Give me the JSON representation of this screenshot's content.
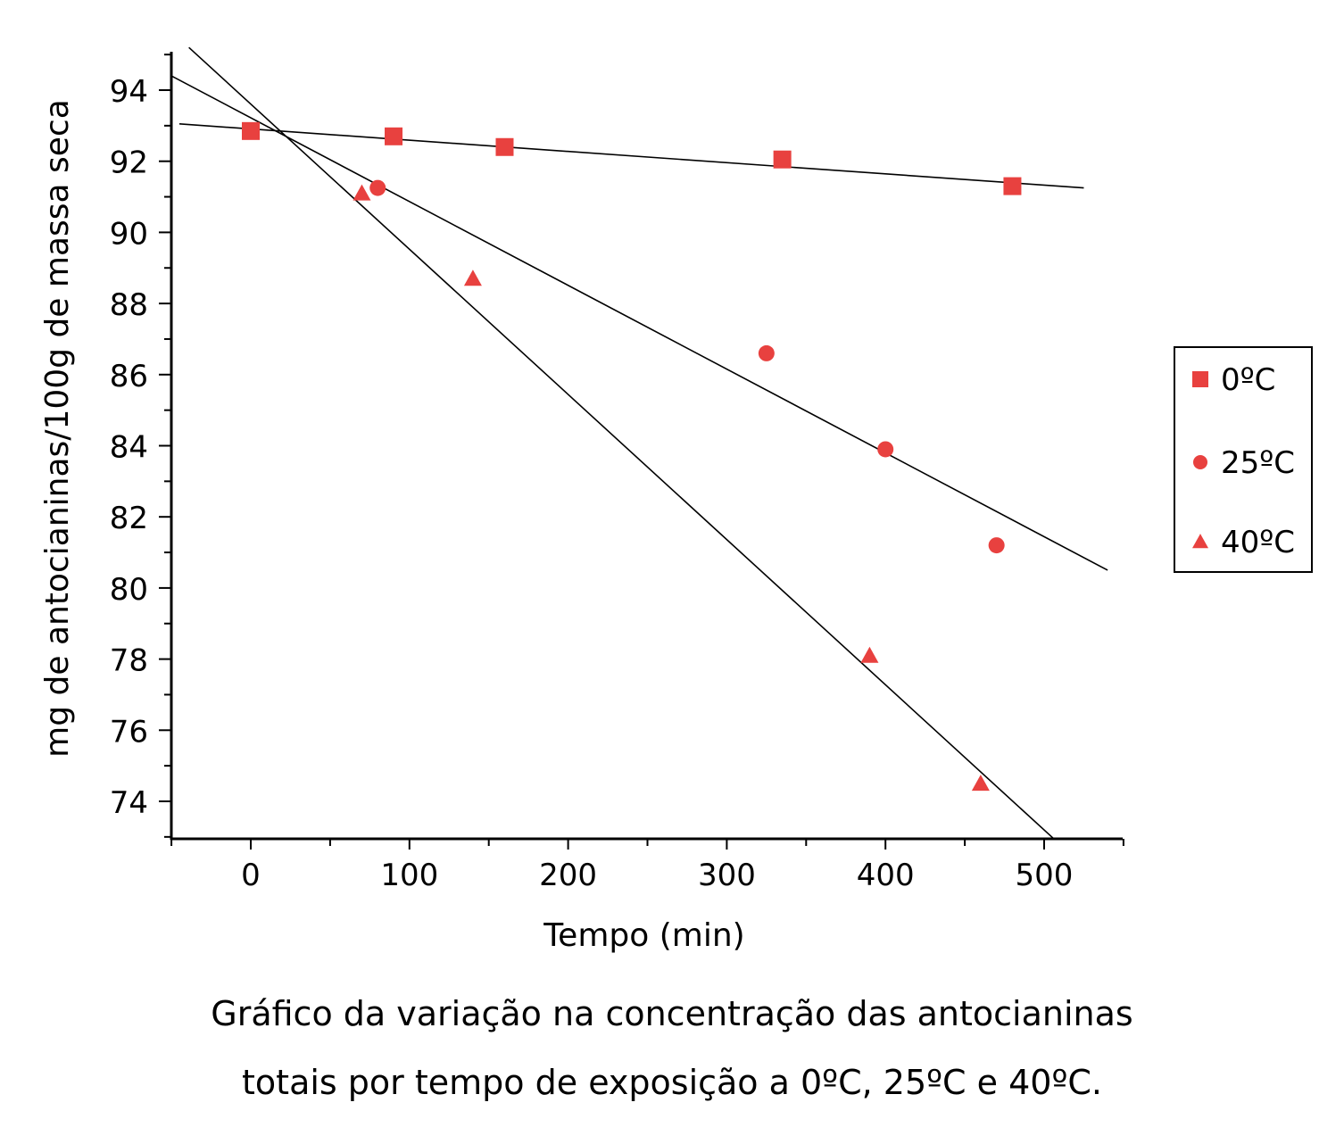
{
  "chart_data": {
    "type": "scatter",
    "xlabel": "Tempo (min)",
    "ylabel": "mg de antocianinas/100g de massa seca",
    "xlim": [
      -50,
      550
    ],
    "ylim": [
      73,
      95
    ],
    "x_ticks": [
      0,
      100,
      200,
      300,
      400,
      500
    ],
    "x_tick_labels": [
      "0",
      "100",
      "200",
      "300",
      "400",
      "500"
    ],
    "y_ticks": [
      74,
      76,
      78,
      80,
      82,
      84,
      86,
      88,
      90,
      92,
      94
    ],
    "y_tick_labels": [
      "74",
      "76",
      "78",
      "80",
      "82",
      "84",
      "86",
      "88",
      "90",
      "92",
      "94"
    ],
    "grid": false,
    "legend_position": "right",
    "marker_color": "#e8413f",
    "series": [
      {
        "name": "0ºC",
        "marker": "square",
        "x": [
          0,
          90,
          160,
          335,
          480
        ],
        "y": [
          92.85,
          92.7,
          92.4,
          92.05,
          91.3
        ],
        "trend": {
          "x": [
            -45,
            525
          ],
          "y": [
            93.05,
            91.25
          ]
        }
      },
      {
        "name": "25ºC",
        "marker": "circle",
        "x": [
          80,
          325,
          400,
          470
        ],
        "y": [
          91.25,
          86.6,
          83.9,
          81.2
        ],
        "trend": {
          "x": [
            -50,
            540
          ],
          "y": [
            94.4,
            80.5
          ]
        }
      },
      {
        "name": "40ºC",
        "marker": "triangle",
        "x": [
          70,
          140,
          390,
          460
        ],
        "y": [
          91.1,
          88.7,
          78.1,
          74.5
        ],
        "trend": {
          "x": [
            -39,
            506
          ],
          "y": [
            95.2,
            72.95
          ]
        }
      }
    ]
  },
  "caption": {
    "line1": "Gráfico da variação na concentração das antocianinas",
    "line2": "totais por tempo de exposição a 0ºC, 25ºC e 40ºC."
  }
}
